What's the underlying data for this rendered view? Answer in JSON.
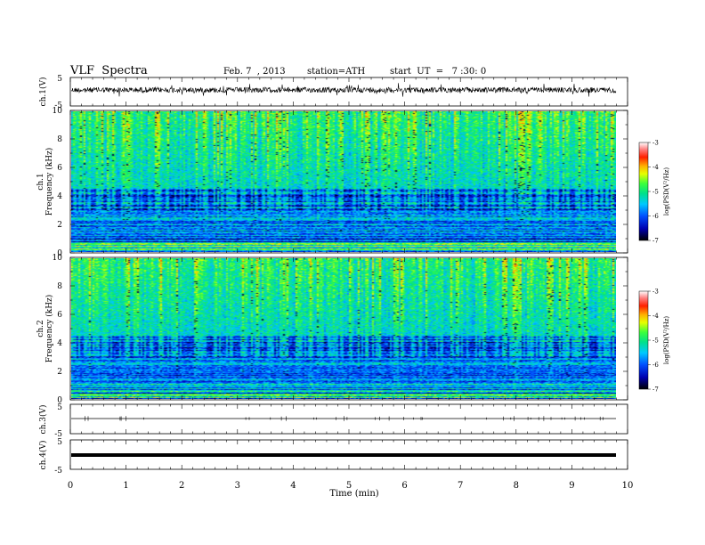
{
  "header": {
    "title": "VLF  Spectra",
    "date": "Feb. 7  , 2013",
    "station": "station=ATH",
    "start": "start  UT  =   7 :30: 0"
  },
  "chart_data": [
    {
      "type": "line",
      "name": "ch1-waveform",
      "ylabel": "ch.1(V)",
      "ylim": [
        -5,
        5
      ],
      "yticks": [
        "5",
        "-5"
      ],
      "xlim": [
        0,
        10
      ]
    },
    {
      "type": "heatmap",
      "name": "ch1-spectrogram",
      "ylabel": [
        "ch.1",
        "Frequency  (kHz)"
      ],
      "ylim": [
        0,
        10
      ],
      "yticks": [
        "0",
        "2",
        "4",
        "6",
        "8",
        "10"
      ],
      "xlim": [
        0,
        9.8
      ],
      "colorbar": {
        "label": "log(PSD(V²/Hz)",
        "range": [
          -7,
          -3
        ],
        "ticks": [
          "-3",
          "-4",
          "-5",
          "-6",
          "-7"
        ]
      }
    },
    {
      "type": "heatmap",
      "name": "ch2-spectrogram",
      "ylabel": [
        "ch.2",
        "Frequency  (kHz)"
      ],
      "ylim": [
        0,
        10
      ],
      "yticks": [
        "0",
        "2",
        "4",
        "6",
        "8",
        "10"
      ],
      "xlim": [
        0,
        9.8
      ],
      "colorbar": {
        "label": "log(PSD(V²/Hz)",
        "range": [
          -7,
          -3
        ],
        "ticks": [
          "-3",
          "-4",
          "-5",
          "-6",
          "-7"
        ]
      }
    },
    {
      "type": "line",
      "name": "ch3-waveform",
      "ylabel": "ch.3(V)",
      "ylim": [
        -5,
        5
      ],
      "yticks": [
        "5",
        "-5"
      ]
    },
    {
      "type": "line",
      "name": "ch4-waveform",
      "ylabel": "ch.4(V)",
      "ylim": [
        -5,
        5
      ],
      "yticks": [
        "5",
        "-5"
      ],
      "xlabel": "Time  (min)",
      "xlim": [
        0,
        10
      ],
      "xticks": [
        "0",
        "1",
        "2",
        "3",
        "4",
        "5",
        "6",
        "7",
        "8",
        "9",
        "10"
      ]
    }
  ]
}
